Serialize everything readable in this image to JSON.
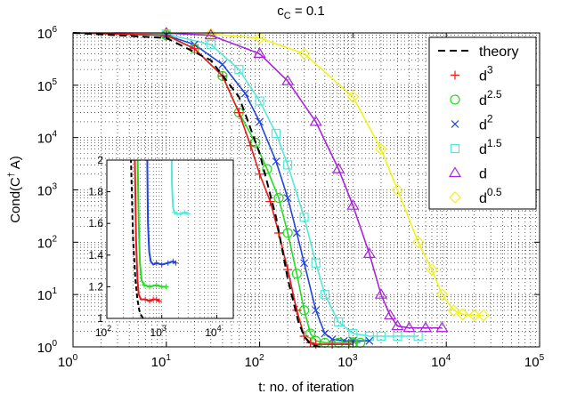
{
  "chart_data": [
    {
      "type": "line",
      "title": "c",
      "title_sub": "C",
      "title_rest": " = 0.1",
      "xlabel": "t: no. of iteration",
      "ylabel_pre": "Cond(C",
      "ylabel_sup": "†",
      "ylabel_post": " A)",
      "xscale": "log",
      "yscale": "log",
      "xlim": [
        1,
        100000
      ],
      "ylim": [
        1,
        1000000
      ],
      "x_ticks": [
        {
          "value": 1,
          "base": "10",
          "exp": "0"
        },
        {
          "value": 10,
          "base": "10",
          "exp": "1"
        },
        {
          "value": 100,
          "base": "10",
          "exp": "2"
        },
        {
          "value": 1000,
          "base": "10",
          "exp": "3"
        },
        {
          "value": 10000,
          "base": "10",
          "exp": "4"
        },
        {
          "value": 100000,
          "base": "10",
          "exp": "5"
        }
      ],
      "y_ticks": [
        {
          "value": 1,
          "base": "10",
          "exp": "0"
        },
        {
          "value": 10,
          "base": "10",
          "exp": "1"
        },
        {
          "value": 100,
          "base": "10",
          "exp": "2"
        },
        {
          "value": 1000,
          "base": "10",
          "exp": "3"
        },
        {
          "value": 10000,
          "base": "10",
          "exp": "4"
        },
        {
          "value": 100000,
          "base": "10",
          "exp": "5"
        },
        {
          "value": 1000000,
          "base": "10",
          "exp": "6"
        }
      ],
      "grid": "dotted",
      "legend_position": "top-right",
      "series": [
        {
          "name": "theory",
          "color": "#000000",
          "marker": "none",
          "dash": true,
          "x": [
            1,
            10,
            30,
            60,
            100,
            150,
            200,
            260,
            300,
            340,
            380,
            420,
            480
          ],
          "y": [
            1000000,
            800000,
            300000,
            60000,
            5000,
            300,
            20,
            3,
            1.6,
            1.2,
            1.06,
            1.02,
            1.0
          ]
        },
        {
          "name": "d",
          "sup": "3",
          "color": "#e8191b",
          "marker": "plus",
          "x": [
            1,
            10,
            20,
            40,
            60,
            80,
            100,
            130,
            160,
            200,
            250,
            300,
            350,
            400,
            600,
            900
          ],
          "y": [
            1000000,
            900000,
            500000,
            150000,
            30000,
            7000,
            2000,
            600,
            150,
            30,
            5,
            1.6,
            1.2,
            1.12,
            1.12,
            1.12
          ]
        },
        {
          "name": "d",
          "sup": "2.5",
          "color": "#22dd22",
          "marker": "circle",
          "x": [
            1,
            10,
            20,
            40,
            60,
            90,
            120,
            160,
            200,
            250,
            300,
            350,
            400,
            500,
            700,
            1000,
            1200
          ],
          "y": [
            1000000,
            900000,
            500000,
            150000,
            30000,
            8000,
            2500,
            700,
            150,
            25,
            5,
            1.8,
            1.3,
            1.2,
            1.2,
            1.2,
            1.2
          ]
        },
        {
          "name": "d",
          "sup": "2",
          "color": "#2244dd",
          "marker": "x",
          "x": [
            1,
            10,
            20,
            40,
            70,
            100,
            150,
            200,
            250,
            300,
            400,
            500,
            600,
            800,
            1000,
            1500
          ],
          "y": [
            1000000,
            900000,
            600000,
            250000,
            70000,
            20000,
            3500,
            700,
            150,
            40,
            5,
            1.8,
            1.4,
            1.3,
            1.3,
            1.3
          ]
        },
        {
          "name": "d",
          "sup": "1.5",
          "color": "#55e8d8",
          "marker": "square",
          "x": [
            1,
            10,
            30,
            60,
            100,
            150,
            200,
            300,
            400,
            500,
            700,
            1000,
            1500,
            2000,
            3000,
            5000
          ],
          "y": [
            1000000,
            950000,
            600000,
            200000,
            50000,
            12000,
            3000,
            300,
            40,
            10,
            3,
            1.8,
            1.6,
            1.6,
            1.6,
            1.6
          ]
        },
        {
          "name": "d",
          "color": "#aa22dd",
          "marker": "triangle",
          "x": [
            1,
            10,
            30,
            100,
            200,
            400,
            700,
            1000,
            1500,
            2000,
            2500,
            3000,
            4000,
            6000,
            9000
          ],
          "y": [
            1000000,
            990000,
            900000,
            400000,
            120000,
            20000,
            2500,
            500,
            60,
            10,
            4,
            2.5,
            2.3,
            2.3,
            2.3
          ]
        },
        {
          "name": "d",
          "sup": "0.5",
          "color": "#f2f21a",
          "marker": "diamond",
          "x": [
            1,
            10,
            30,
            100,
            300,
            1000,
            2000,
            3000,
            5000,
            7000,
            9000,
            12000,
            15000,
            20000,
            25000
          ],
          "y": [
            1000000,
            990000,
            950000,
            800000,
            400000,
            60000,
            6000,
            1000,
            100,
            30,
            10,
            5,
            4.2,
            4.0,
            4.0
          ]
        }
      ]
    },
    {
      "type": "line",
      "inset": true,
      "xscale": "log",
      "xlim": [
        100,
        20000
      ],
      "ylim": [
        1,
        2
      ],
      "x_ticks": [
        {
          "value": 100,
          "base": "10",
          "exp": "2"
        },
        {
          "value": 1000,
          "base": "10",
          "exp": "3"
        },
        {
          "value": 10000,
          "base": "10",
          "exp": "4"
        }
      ],
      "y_ticks": [
        {
          "value": 1,
          "label": "1"
        },
        {
          "value": 1.2,
          "label": "1.2"
        },
        {
          "value": 1.4,
          "label": "1.4"
        },
        {
          "value": 1.6,
          "label": "1.6"
        },
        {
          "value": 1.8,
          "label": "1.8"
        },
        {
          "value": 2,
          "label": "2"
        }
      ],
      "series": [
        {
          "name": "theory",
          "color": "#000000",
          "dash": true,
          "x": [
            270,
            300,
            330,
            360,
            390,
            420,
            460
          ],
          "y": [
            2.1,
            1.5,
            1.25,
            1.12,
            1.05,
            1.02,
            1.0
          ]
        },
        {
          "name": "d3",
          "color": "#e8191b",
          "x": [
            320,
            340,
            360,
            380,
            420,
            500,
            600,
            700,
            800,
            900
          ],
          "y": [
            2.1,
            1.5,
            1.25,
            1.15,
            1.12,
            1.12,
            1.11,
            1.12,
            1.12,
            1.11
          ]
        },
        {
          "name": "d2.5",
          "color": "#22dd22",
          "x": [
            360,
            380,
            400,
            430,
            480,
            600,
            800,
            1000,
            1200
          ],
          "y": [
            2.1,
            1.6,
            1.35,
            1.24,
            1.21,
            1.2,
            1.21,
            1.2,
            1.2
          ]
        },
        {
          "name": "d2",
          "color": "#2244dd",
          "x": [
            540,
            560,
            590,
            630,
            700,
            800,
            1000,
            1300,
            1600,
            1800
          ],
          "y": [
            2.1,
            1.6,
            1.42,
            1.36,
            1.34,
            1.35,
            1.34,
            1.35,
            1.36,
            1.35
          ]
        },
        {
          "name": "d1.5",
          "color": "#55e8d8",
          "x": [
            1500,
            1530,
            1600,
            1700,
            1900,
            2200,
            2600,
            3000
          ],
          "y": [
            2.1,
            1.85,
            1.7,
            1.67,
            1.66,
            1.66,
            1.67,
            1.66
          ]
        }
      ]
    }
  ]
}
